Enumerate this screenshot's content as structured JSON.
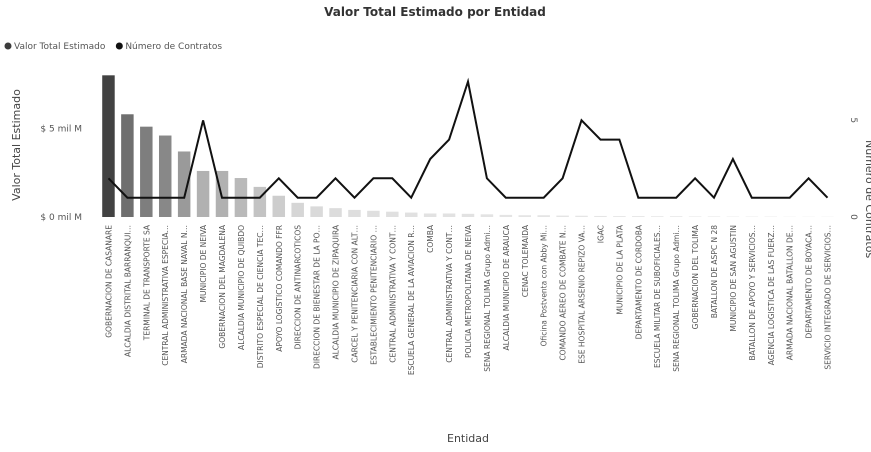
{
  "chart_data": {
    "type": "combo",
    "title": "Valor Total Estimado por Entidad",
    "x_label": "Entidad",
    "y_label": "Valor Total Estimado",
    "y2_label": "Número de Contratos",
    "categories": [
      "GOBERNACION DE CASANARE",
      "ALCALDIA DISTRITAL BARRANQUI…",
      "TERMINAL DE TRANSPORTE SA",
      "CENTRAL ADMINISTRATIVA ESPECIA…",
      "ARMADA NACIONAL BASE NAVAL N…",
      "MUNICIPIO DE NEIVA",
      "GOBERNACION DEL MAGDALENA",
      "ALCALDIA MUNICIPIO DE QUIBDO",
      "DISTRITO ESPECIAL DE CIENCIA TEC…",
      "APOYO LOGISTICO COMANDO FFR",
      "DIRECCION DE ANTINARCOTICOS",
      "DIRECCION DE BIENESTAR DE LA PO…",
      "ALCALDIA MUNICIPIO DE ZIPAQUIRA",
      "CARCEL Y PENITENCIARIA CON ALT…",
      "ESTABLECIMIENTO PENITENCIARIO …",
      "CENTRAL ADMINISTRATIVA Y CONT…",
      "ESCUELA GENERAL DE LA AVIACION R…",
      "COMBA",
      "CENTRAL ADMINISTRATIVA Y CONT…",
      "POLICIA METROPOLITANA DE NEIVA",
      "SENA REGIONAL TOLIMA Grupo Admi…",
      "ALCALDIA MUNICIPIO DE ARAUCA",
      "CENAC TOLEMAIDA",
      "Oficina Postventa con Abby Mi…",
      "COMANDO AEREO DE COMBATE N…",
      "ESE HOSPITAL ARSENIO REPIZO VA…",
      "IGAC",
      "MUNICIPIO DE LA PLATA",
      "DEPARTAMENTO DE CORDOBA",
      "ESCUELA MILITAR DE SUBOFICIALES…",
      "SENA REGIONAL TOLIMA Grupo Admi…",
      "GOBERNACION DEL TOLIMA",
      "BATALLON DE ASPC N 28",
      "MUNICIPIO DE SAN AGUSTIN",
      "BATALLON DE APOYO Y SERVICIOS…",
      "AGENCIA LOGISTICA DE LAS FUERZ…",
      "ARMADA NACIONAL BATALLON DE…",
      "DEPARTAMENTO DE BOYACA…",
      "SERVICIO INTEGRADO DE SERVICIOS…"
    ],
    "series": [
      {
        "name": "Valor Total Estimado",
        "type": "bar",
        "color": "#3c3c3c",
        "values": [
          8.0,
          5.8,
          5.1,
          4.6,
          3.7,
          2.6,
          2.6,
          2.2,
          1.7,
          1.2,
          0.8,
          0.6,
          0.5,
          0.4,
          0.35,
          0.3,
          0.25,
          0.2,
          0.2,
          0.18,
          0.15,
          0.12,
          0.1,
          0.1,
          0.08,
          0.07,
          0.06,
          0.05,
          0.05,
          0.04,
          0.04,
          0.03,
          0.03,
          0.02,
          0.02,
          0.02,
          0.01,
          0.01,
          0.01
        ]
      },
      {
        "name": "Número de Contratos",
        "type": "line",
        "axis": "y2",
        "color": "#111111",
        "values": [
          2,
          1,
          1,
          1,
          1,
          5,
          1,
          1,
          1,
          2,
          1,
          1,
          2,
          1,
          2,
          2,
          1,
          3,
          4,
          7,
          2,
          1,
          1,
          1,
          2,
          5,
          4,
          4,
          1,
          1,
          1,
          2,
          1,
          3,
          1,
          1,
          1,
          2,
          1
        ]
      }
    ],
    "ylim": [
      0,
      8.3
    ],
    "yticks": [
      {
        "value": 0,
        "label": "$ 0 mil M"
      },
      {
        "value": 5,
        "label": "$ 5 mil M"
      }
    ],
    "y2lim": [
      0,
      7.6
    ],
    "y2ticks": [
      0,
      5
    ],
    "legend": "top-left"
  }
}
